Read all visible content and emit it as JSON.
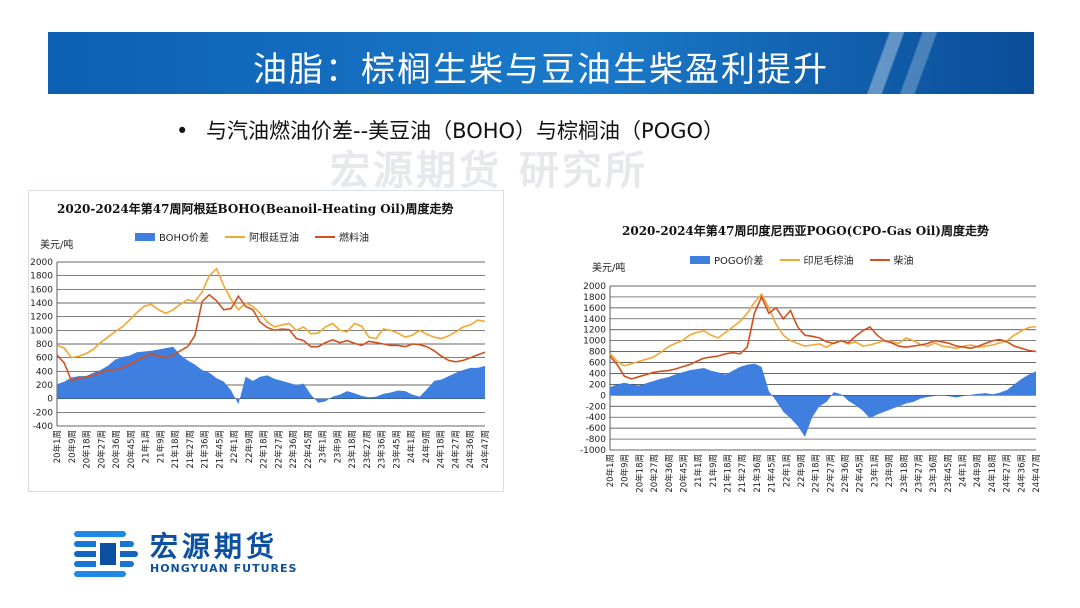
{
  "slide": {
    "title": "油脂：棕榈生柴与豆油生柴盈利提升",
    "bullet": "•",
    "subtitle": "与汽油燃油价差--美豆油（BOHO）与棕榈油（POGO）",
    "watermark": "宏源期货 研究所"
  },
  "logo": {
    "name_cn": "宏源期货",
    "name_en": "HONGYUAN FUTURES"
  },
  "colors": {
    "title_bar": "#1565c0",
    "spread_fill": "#3f7fe0",
    "soy_line": "#f0a830",
    "fuel_line": "#d2501e"
  },
  "chart_data": [
    {
      "type": "line",
      "title": "2020-2024年第47周阿根廷BOHO(Beanoil-Heating Oil)周度走势",
      "ylabel": "美元/吨",
      "ylim": [
        -400,
        2000
      ],
      "yticks": [
        -400,
        -200,
        0,
        200,
        400,
        600,
        800,
        1000,
        1200,
        1400,
        1600,
        1800,
        2000
      ],
      "x_tick_labels": [
        "20年1周",
        "20年9周",
        "20年18周",
        "20年27周",
        "20年36周",
        "20年45周",
        "21年1周",
        "21年9周",
        "21年18周",
        "21年27周",
        "21年36周",
        "21年45周",
        "22年1周",
        "22年9周",
        "22年18周",
        "22年27周",
        "22年36周",
        "22年45周",
        "23年1周",
        "23年9周",
        "23年18周",
        "23年27周",
        "23年36周",
        "23年45周",
        "24年1周",
        "24年9周",
        "24年18周",
        "24年27周",
        "24年36周",
        "24年47周"
      ],
      "legend": [
        "BOHO价差",
        "阿根廷豆油",
        "燃料油"
      ],
      "series": [
        {
          "name": "BOHO价差",
          "style": "area",
          "values": [
            210,
            250,
            310,
            330,
            330,
            380,
            420,
            480,
            570,
            610,
            630,
            680,
            690,
            700,
            720,
            740,
            760,
            640,
            560,
            500,
            420,
            380,
            300,
            250,
            120,
            -80,
            320,
            260,
            320,
            340,
            290,
            260,
            230,
            200,
            220,
            60,
            -60,
            -40,
            30,
            60,
            110,
            80,
            40,
            20,
            30,
            70,
            90,
            120,
            110,
            60,
            30,
            140,
            260,
            280,
            330,
            380,
            420,
            450,
            450,
            480
          ]
        },
        {
          "name": "阿根廷豆油",
          "style": "line",
          "values": [
            780,
            740,
            600,
            620,
            660,
            720,
            820,
            900,
            980,
            1050,
            1150,
            1260,
            1350,
            1380,
            1300,
            1250,
            1300,
            1380,
            1450,
            1420,
            1560,
            1800,
            1900,
            1650,
            1450,
            1300,
            1400,
            1350,
            1250,
            1120,
            1050,
            1080,
            1100,
            1000,
            1050,
            950,
            960,
            1050,
            1100,
            1000,
            980,
            1100,
            1060,
            900,
            880,
            1020,
            1000,
            960,
            900,
            930,
            1000,
            940,
            900,
            880,
            920,
            980,
            1050,
            1080,
            1150,
            1130
          ]
        },
        {
          "name": "燃料油",
          "style": "line",
          "values": [
            640,
            520,
            260,
            300,
            320,
            340,
            380,
            420,
            420,
            450,
            500,
            560,
            610,
            660,
            620,
            600,
            640,
            700,
            760,
            920,
            1420,
            1520,
            1430,
            1300,
            1320,
            1500,
            1350,
            1300,
            1120,
            1040,
            1000,
            1020,
            1010,
            880,
            850,
            760,
            760,
            820,
            860,
            820,
            850,
            810,
            780,
            840,
            820,
            800,
            780,
            780,
            760,
            800,
            790,
            760,
            700,
            620,
            560,
            540,
            560,
            600,
            640,
            680
          ]
        }
      ]
    },
    {
      "type": "line",
      "title": "2020-2024年第47周印度尼西亚POGO(CPO-Gas Oil)周度走势",
      "ylabel": "美元/吨",
      "ylim": [
        -1000,
        2000
      ],
      "yticks": [
        -1000,
        -800,
        -600,
        -400,
        -200,
        0,
        200,
        400,
        600,
        800,
        1000,
        1200,
        1400,
        1600,
        1800,
        2000
      ],
      "x_tick_labels": [
        "20年1周",
        "20年9周",
        "20年18周",
        "20年27周",
        "20年36周",
        "20年45周",
        "21年1周",
        "21年9周",
        "21年18周",
        "21年27周",
        "21年36周",
        "21年45周",
        "22年1周",
        "22年9周",
        "22年18周",
        "22年27周",
        "22年36周",
        "22年45周",
        "23年1周",
        "23年9周",
        "23年18周",
        "23年27周",
        "23年36周",
        "23年45周",
        "24年1周",
        "24年9周",
        "24年18周",
        "24年27周",
        "24年36周",
        "24年47周"
      ],
      "legend": [
        "POGO价差",
        "印尼毛棕油",
        "柴油"
      ],
      "series": [
        {
          "name": "POGO价差",
          "style": "area",
          "values": [
            150,
            200,
            230,
            200,
            180,
            220,
            260,
            300,
            330,
            380,
            420,
            460,
            480,
            500,
            450,
            420,
            380,
            450,
            520,
            560,
            580,
            520,
            80,
            -100,
            -300,
            -420,
            -560,
            -760,
            -400,
            -200,
            -120,
            60,
            20,
            -100,
            -180,
            -280,
            -420,
            -350,
            -300,
            -250,
            -200,
            -150,
            -120,
            -60,
            -30,
            -10,
            0,
            -20,
            -40,
            -10,
            10,
            30,
            40,
            20,
            50,
            100,
            200,
            300,
            380,
            440
          ]
        },
        {
          "name": "印尼毛棕油",
          "style": "line",
          "values": [
            770,
            620,
            540,
            580,
            620,
            660,
            700,
            780,
            880,
            950,
            1000,
            1100,
            1150,
            1180,
            1100,
            1050,
            1150,
            1250,
            1350,
            1500,
            1700,
            1850,
            1600,
            1300,
            1100,
            1000,
            950,
            900,
            920,
            940,
            880,
            960,
            1000,
            940,
            980,
            900,
            920,
            960,
            1000,
            980,
            950,
            1050,
            1000,
            930,
            900,
            960,
            900,
            880,
            860,
            900,
            920,
            880,
            900,
            920,
            960,
            1000,
            1100,
            1180,
            1240,
            1260
          ]
        },
        {
          "name": "柴油",
          "style": "line",
          "values": [
            720,
            560,
            350,
            300,
            340,
            380,
            420,
            440,
            450,
            480,
            520,
            560,
            620,
            680,
            700,
            720,
            760,
            780,
            760,
            880,
            1500,
            1800,
            1500,
            1600,
            1400,
            1550,
            1250,
            1100,
            1080,
            1050,
            980,
            950,
            1000,
            960,
            1080,
            1180,
            1250,
            1100,
            1000,
            960,
            900,
            880,
            900,
            920,
            950,
            1000,
            980,
            950,
            900,
            880,
            860,
            900,
            950,
            1000,
            1020,
            980,
            900,
            860,
            820,
            800
          ]
        }
      ]
    }
  ]
}
